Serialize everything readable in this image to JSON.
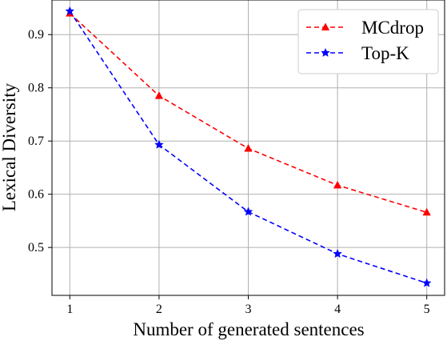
{
  "chart_data": {
    "type": "line",
    "title": "",
    "xlabel": "Number of generated sentences",
    "ylabel": "Lexical Diversity",
    "x": [
      1,
      2,
      3,
      4,
      5
    ],
    "xticks": [
      "1",
      "2",
      "3",
      "4",
      "5"
    ],
    "yticks": [
      "0.5",
      "0.6",
      "0.7",
      "0.8",
      "0.9"
    ],
    "xlim": [
      0.8,
      5.2
    ],
    "ylim": [
      0.41,
      0.965
    ],
    "grid": true,
    "legend_position": "top-right",
    "series": [
      {
        "name": "MCdrop",
        "values": [
          0.94,
          0.785,
          0.686,
          0.617,
          0.566
        ],
        "color": "#ff0000",
        "marker": "triangle",
        "line_style": "dashed"
      },
      {
        "name": "Top-K",
        "values": [
          0.944,
          0.693,
          0.567,
          0.488,
          0.433
        ],
        "color": "#0000ff",
        "marker": "star",
        "line_style": "dashed"
      }
    ]
  }
}
